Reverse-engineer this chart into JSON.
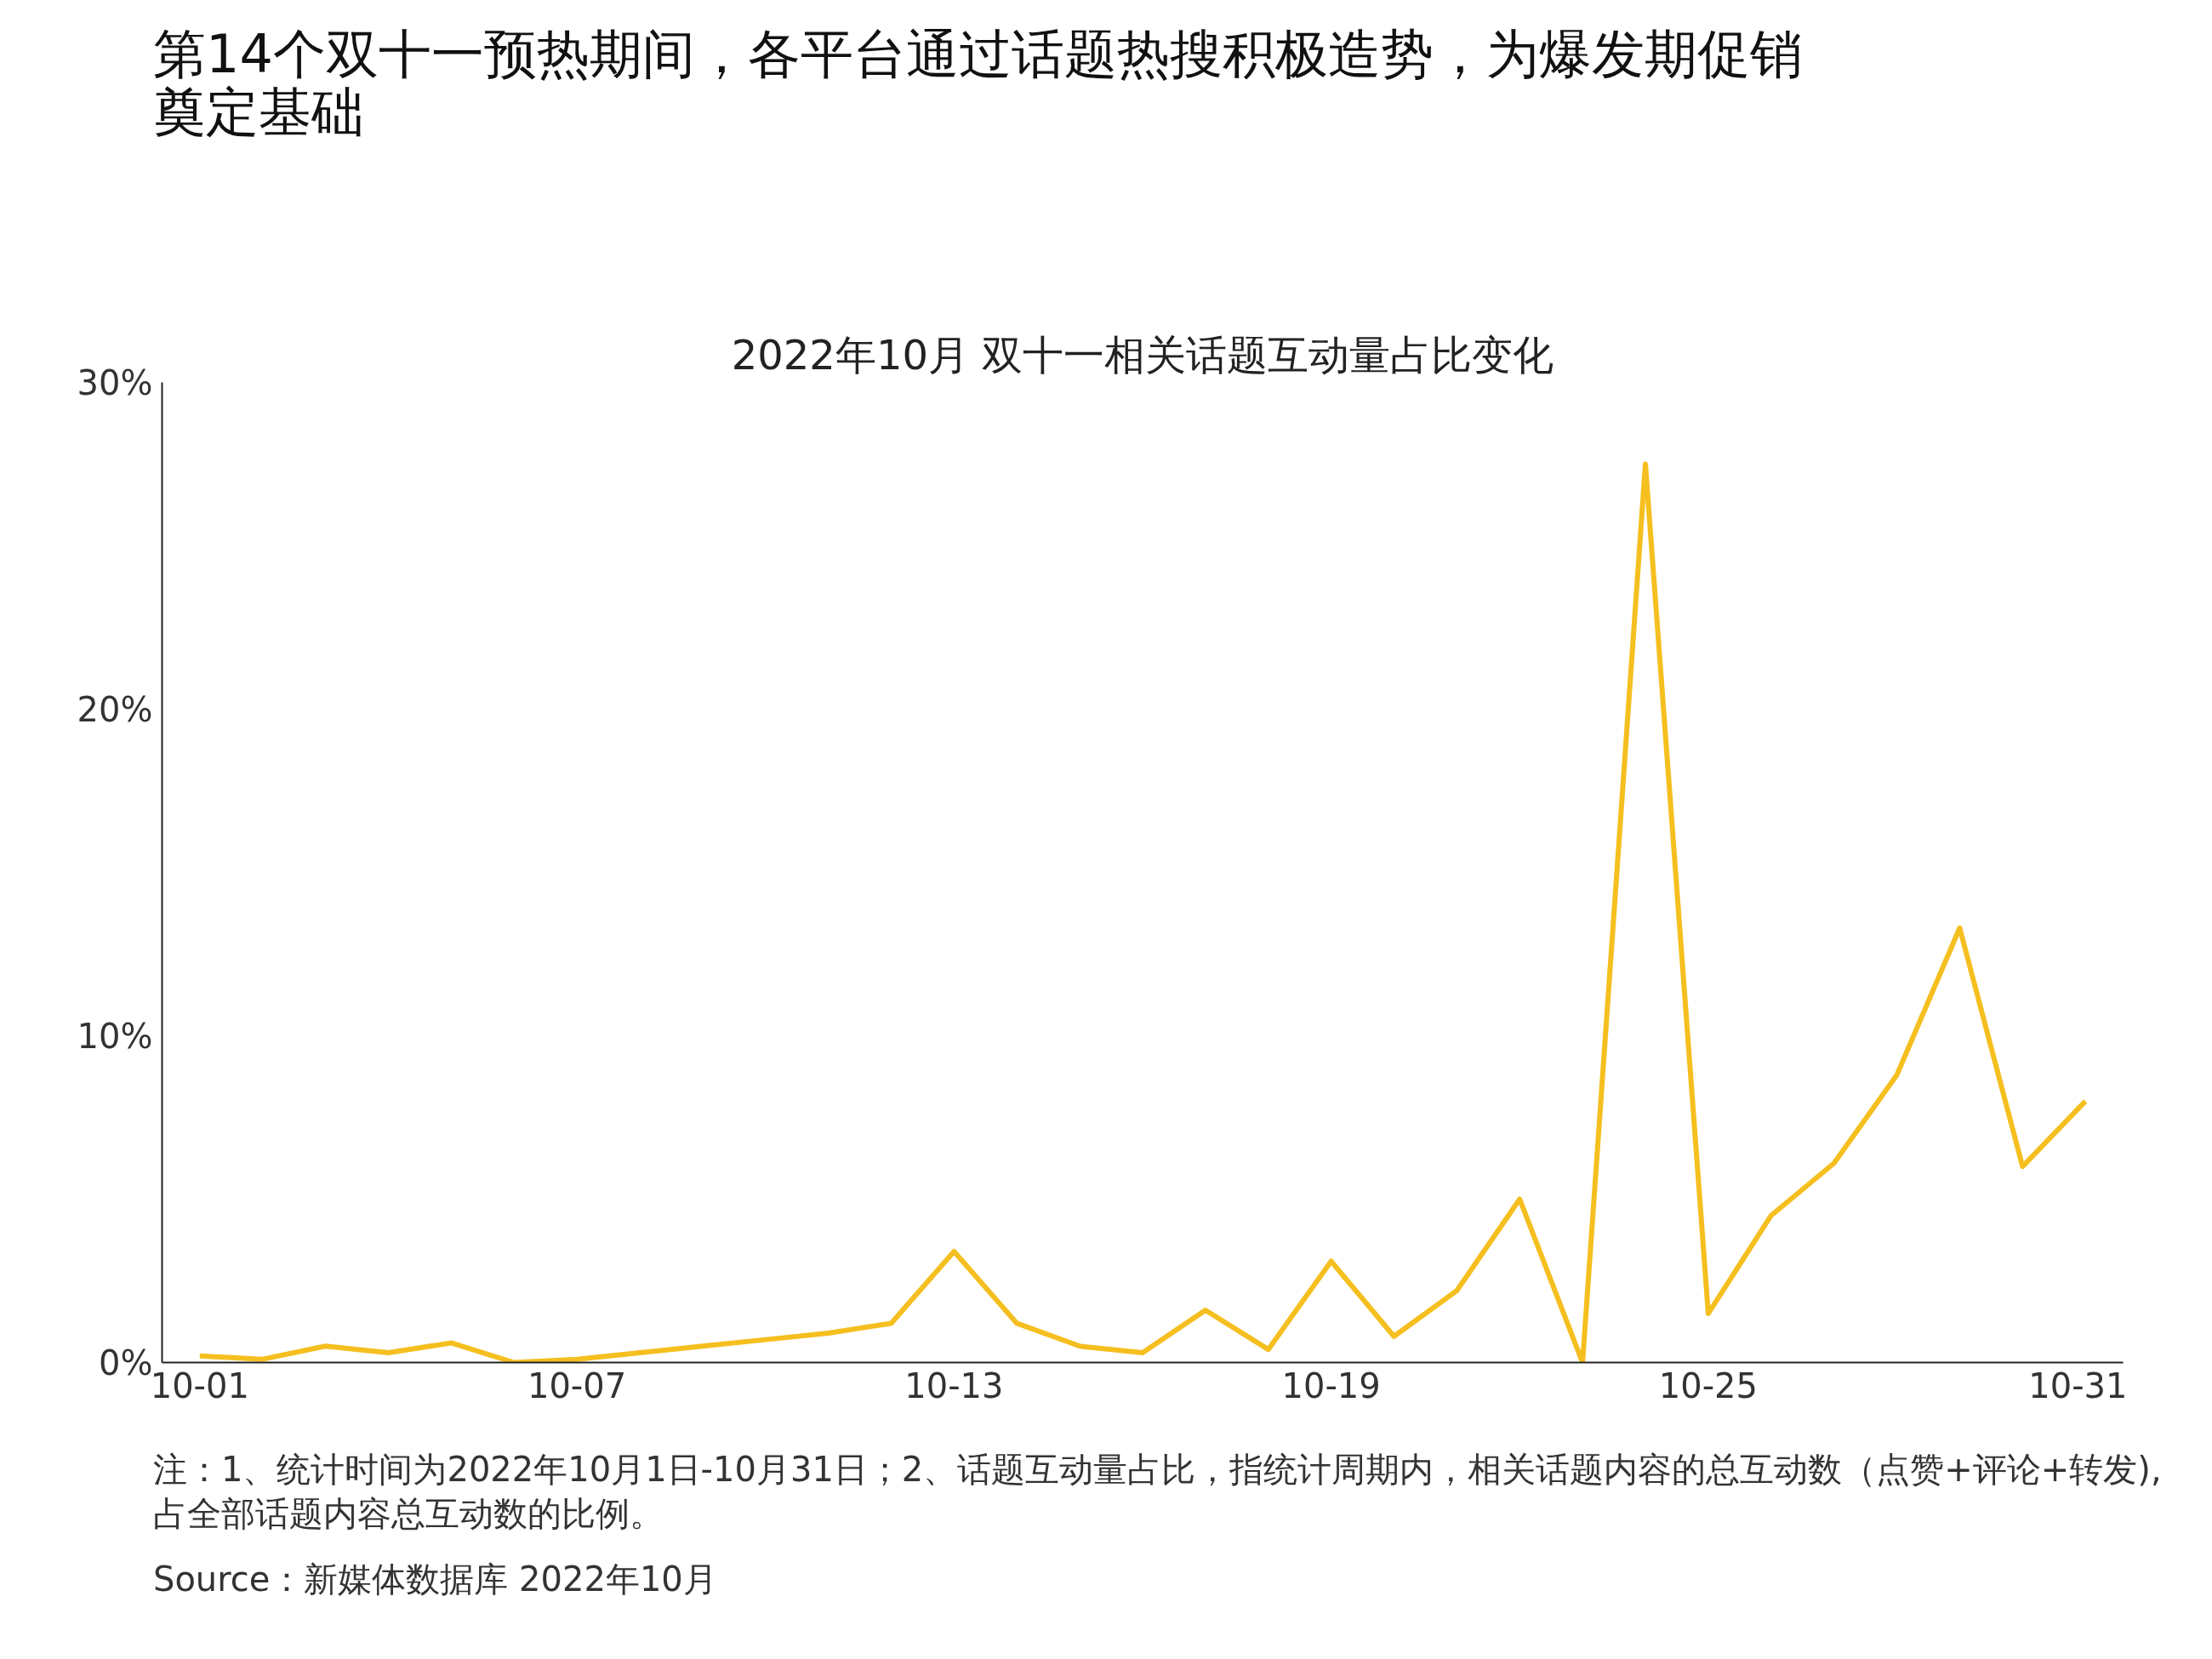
{
  "chart_data": {
    "type": "line",
    "title": "2022年10月 双十一相关话题互动量占比变化",
    "subtitle": "第14个双十一预热期间，各平台通过话题热搜积极造势，为爆发期促销奠定基础",
    "categories": [
      "10-01",
      null,
      null,
      null,
      null,
      null,
      "10-07",
      null,
      null,
      null,
      null,
      null,
      "10-13",
      null,
      null,
      null,
      null,
      null,
      "10-19",
      null,
      null,
      null,
      null,
      null,
      "10-25",
      null,
      null,
      null,
      null,
      null,
      "10-31"
    ],
    "series": [
      {
        "color": "#f5bf1f",
        "values": [
          0.2,
          0.1,
          0.5,
          0.3,
          0.6,
          0.0,
          0.1,
          0.3,
          0.5,
          0.7,
          0.9,
          1.2,
          3.4,
          1.2,
          0.5,
          0.3,
          1.6,
          0.4,
          3.1,
          0.8,
          2.2,
          5.0,
          0.0,
          27.5,
          1.5,
          4.5,
          6.1,
          8.8,
          13.3,
          6.0,
          8.0
        ]
      }
    ],
    "ylim": [
      0,
      30
    ],
    "yticks": [
      {
        "value": 0,
        "label": "0%"
      },
      {
        "value": 10,
        "label": "10%"
      },
      {
        "value": 20,
        "label": "20%"
      },
      {
        "value": 30,
        "label": "30%"
      }
    ],
    "grid": false,
    "marker": "none",
    "line_style": "solid",
    "annotations": [
      "注：1、统计时间为2022年10月1日-10月31日；2、话题互动量占比，指统计周期内，相关话题内容的总互动数（点赞+评论+转发),占全部话题内容总互动数的比例。",
      "Source：新媒体数据库 2022年10月"
    ]
  }
}
